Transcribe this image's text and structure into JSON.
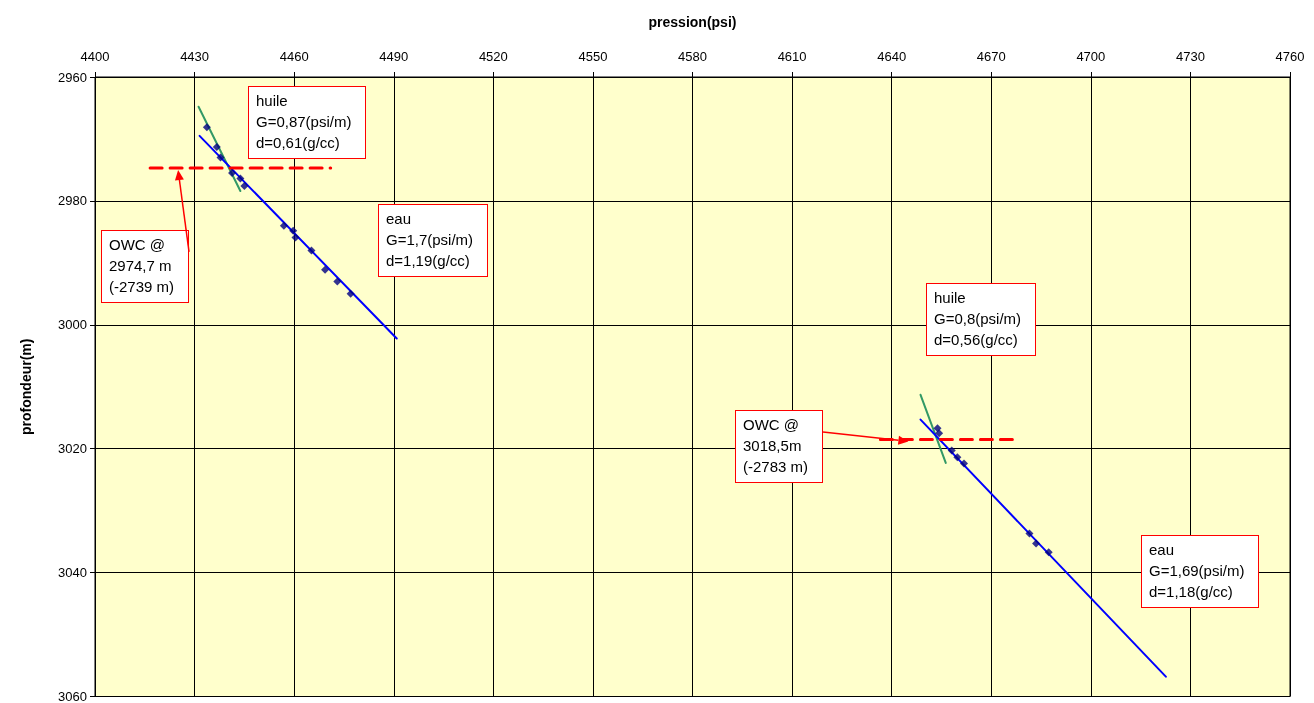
{
  "chart_data": {
    "type": "scatter",
    "xlabel": "pression(psi)",
    "ylabel": "profondeur(m)",
    "xlim": [
      4400,
      4760
    ],
    "xticks": [
      4400,
      4430,
      4460,
      4490,
      4520,
      4550,
      4580,
      4610,
      4640,
      4670,
      4700,
      4730,
      4760
    ],
    "ylim": [
      3060,
      2960
    ],
    "yticks": [
      2960,
      2980,
      3000,
      3020,
      3040,
      3060
    ],
    "grid": true,
    "series": [
      {
        "type": "line",
        "color": "#339966",
        "marker": "none",
        "line_style": "solid",
        "x": [
          4431.2,
          4443.8
        ],
        "values": [
          2964.8,
          2978.4
        ]
      },
      {
        "type": "line",
        "color": "#339966",
        "marker": "none",
        "line_style": "solid",
        "x": [
          4648.7,
          4656.3
        ],
        "values": [
          3011.3,
          3022.3
        ]
      },
      {
        "type": "line",
        "color": "#0000ff",
        "marker": "none",
        "line_style": "solid",
        "x": [
          4431.5,
          4490.9
        ],
        "values": [
          2969.5,
          3002.2
        ]
      },
      {
        "type": "line",
        "color": "#0000ff",
        "marker": "none",
        "line_style": "solid",
        "x": [
          4648.7,
          4722.6
        ],
        "values": [
          3015.3,
          3056.8
        ]
      },
      {
        "type": "line",
        "color": "#ff0000",
        "marker": "none",
        "line_style": "dashed",
        "x": [
          4416.6,
          4471
        ],
        "values": [
          2974.7,
          2974.7
        ]
      },
      {
        "type": "line",
        "color": "#ff0000",
        "marker": "none",
        "line_style": "dashed",
        "x": [
          4636.6,
          4677
        ],
        "values": [
          3018.5,
          3018.5
        ]
      },
      {
        "color": "#000080",
        "marker": "diamond",
        "x": [
          4433.7,
          4436.7,
          4437.8,
          4441.3,
          4443.8,
          4445.0,
          4456.9,
          4459.7,
          4460.4,
          4465.2,
          4469.3,
          4473.0,
          4477.0,
          4653.8,
          4654.3,
          4658.1,
          4659.8,
          4661.8,
          4681.5,
          4683.5,
          4687.3
        ],
        "values": [
          2968.1,
          2971.3,
          2973.0,
          2975.5,
          2976.4,
          2977.6,
          2984.0,
          2984.8,
          2985.9,
          2988.0,
          2991.1,
          2993.0,
          2995.0,
          3016.7,
          3017.5,
          3020.3,
          3021.4,
          3022.4,
          3033.7,
          3035.3,
          3036.7
        ]
      }
    ],
    "annotations": [
      "huile\nG=0,87(psi/m)\nd=0,61(g/cc)",
      "eau\nG=1,7(psi/m)\nd=1,19(g/cc)",
      "OWC @\n2974,7 m\n(-2739 m)",
      "huile\nG=0,8(psi/m)\nd=0,56(g/cc)",
      "OWC @\n3018,5m\n(-2783 m)",
      "eau\nG=1,69(psi/m)\nd=1,18(g/cc)"
    ]
  }
}
